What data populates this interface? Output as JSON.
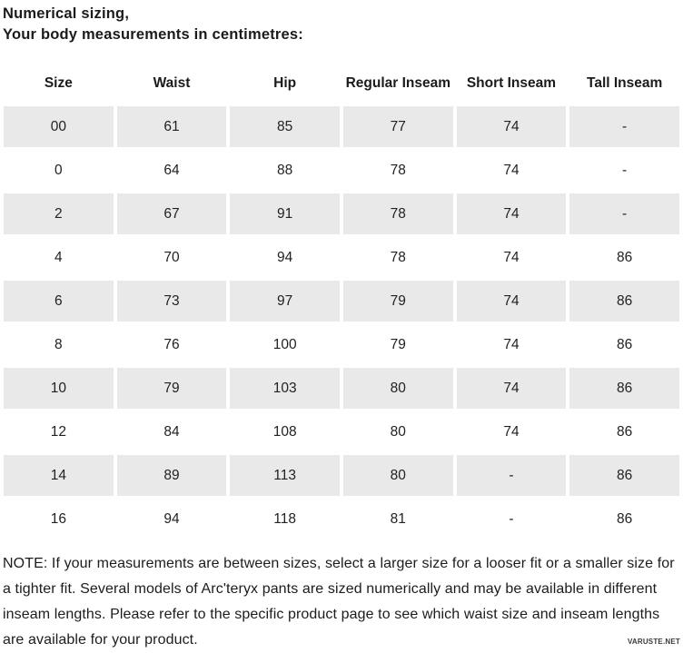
{
  "header": {
    "title_lines": [
      "Numerical sizing,",
      "Your body measurements in centimetres:"
    ]
  },
  "size_table": {
    "columns": [
      "Size",
      "Waist",
      "Hip",
      "Regular Inseam",
      "Short Inseam",
      "Tall Inseam"
    ],
    "rows": [
      [
        "00",
        "61",
        "85",
        "77",
        "74",
        "-"
      ],
      [
        "0",
        "64",
        "88",
        "78",
        "74",
        "-"
      ],
      [
        "2",
        "67",
        "91",
        "78",
        "74",
        "-"
      ],
      [
        "4",
        "70",
        "94",
        "78",
        "74",
        "86"
      ],
      [
        "6",
        "73",
        "97",
        "79",
        "74",
        "86"
      ],
      [
        "8",
        "76",
        "100",
        "79",
        "74",
        "86"
      ],
      [
        "10",
        "79",
        "103",
        "80",
        "74",
        "86"
      ],
      [
        "12",
        "84",
        "108",
        "80",
        "74",
        "86"
      ],
      [
        "14",
        "89",
        "113",
        "80",
        "-",
        "86"
      ],
      [
        "16",
        "94",
        "118",
        "81",
        "-",
        "86"
      ]
    ]
  },
  "note": {
    "text": "NOTE: If your measurements are between sizes, select a larger size for a looser fit or a smaller size for a tighter fit. Several models of Arc'teryx pants are sized numerically and may be available in different inseam lengths. Please refer to the specific product page to see which waist size and inseam lengths are available for your product."
  },
  "watermark": {
    "text": "VARUSTE.NET"
  },
  "colors": {
    "row_stripe": "#e9e9e9",
    "text": "#1c1c1e",
    "background": "#ffffff"
  }
}
